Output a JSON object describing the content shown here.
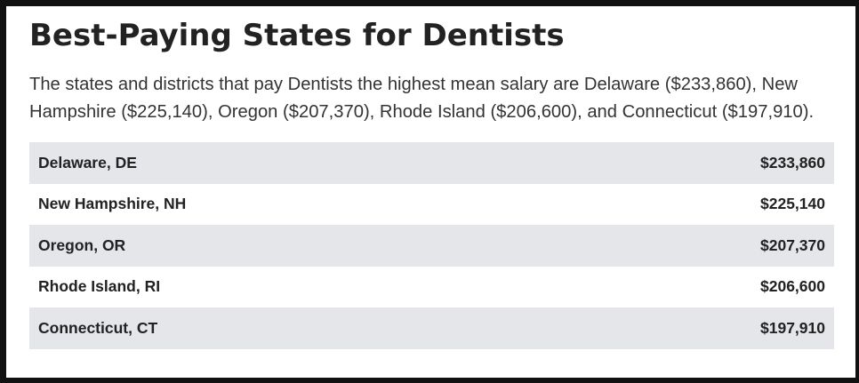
{
  "title": "Best-Paying States for Dentists",
  "intro": "The states and districts that pay Dentists the highest mean salary are Delaware ($233,860), New Hampshire ($225,140), Oregon ($207,370), Rhode Island ($206,600), and Connecticut ($197,910).",
  "table": {
    "rows": [
      {
        "state": "Delaware, DE",
        "salary": "$233,860"
      },
      {
        "state": "New Hampshire, NH",
        "salary": "$225,140"
      },
      {
        "state": "Oregon, OR",
        "salary": "$207,370"
      },
      {
        "state": "Rhode Island, RI",
        "salary": "$206,600"
      },
      {
        "state": "Connecticut, CT",
        "salary": "$197,910"
      }
    ],
    "stripe_color": "#e4e6ea"
  }
}
